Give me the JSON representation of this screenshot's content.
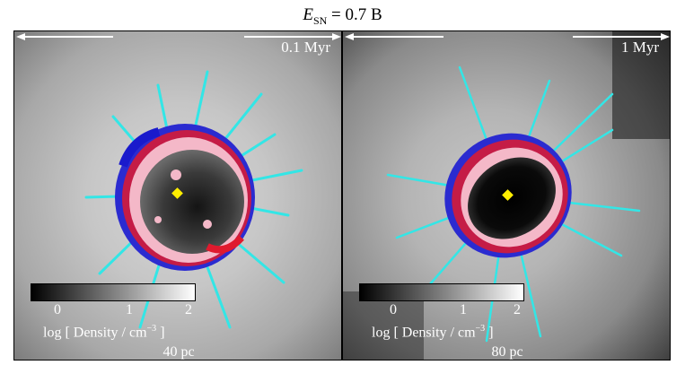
{
  "title": {
    "prefix": "E",
    "subscript": "SN",
    "rest": " = 0.7 B"
  },
  "panels": [
    {
      "time": "0.1 Myr",
      "scale_label": "40 pc",
      "colorbar": {
        "ticks": [
          "0",
          "1",
          "2"
        ],
        "label_main": "log [ Density / cm",
        "label_exp": "−3",
        "label_end": " ]"
      }
    },
    {
      "time": "1 Myr",
      "scale_label": "80 pc",
      "colorbar": {
        "ticks": [
          "0",
          "1",
          "2"
        ],
        "label_main": "log [ Density / cm",
        "label_exp": "−3",
        "label_end": " ]"
      }
    }
  ],
  "colors": {
    "cyan": "#33e6e6",
    "blue": "#1a1acc",
    "red": "#e01a2e",
    "pink": "#f4b8c8",
    "marker": "#ffee00"
  }
}
